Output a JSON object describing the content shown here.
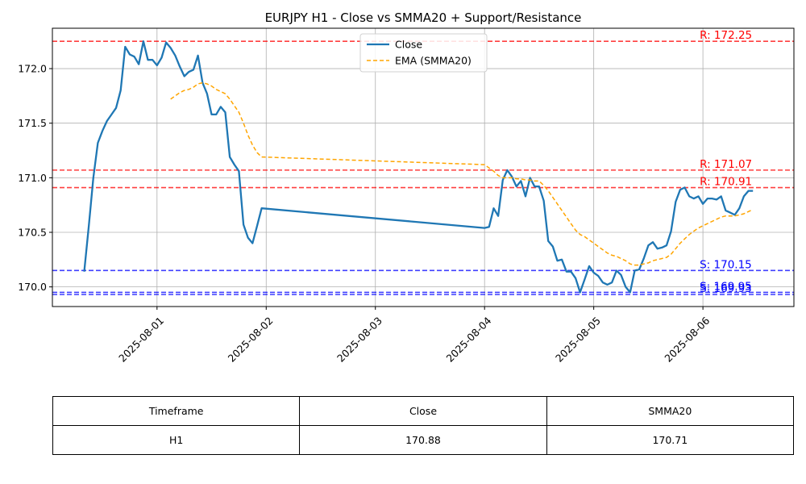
{
  "chart_data": {
    "type": "line",
    "title": "EURJPY H1 - Close vs SMMA20 + Support/Resistance",
    "x_tick_labels": [
      "2025-08-01",
      "2025-08-02",
      "2025-08-03",
      "2025-08-04",
      "2025-08-05",
      "2025-08-06"
    ],
    "xlim": [
      "2025-07-31T01:00",
      "2025-08-06T20:00"
    ],
    "y_tick_labels": [
      "170.0",
      "170.5",
      "171.0",
      "171.5",
      "172.0"
    ],
    "ylim": [
      169.82,
      172.37
    ],
    "grid": true,
    "legend_position": "top-center",
    "series": [
      {
        "name": "Close",
        "color": "#1f77b4",
        "style": "solid",
        "points": [
          [
            "2025-07-31T08:00",
            170.14
          ],
          [
            "2025-07-31T09:00",
            170.56
          ],
          [
            "2025-07-31T10:00",
            171.0
          ],
          [
            "2025-07-31T11:00",
            171.32
          ],
          [
            "2025-07-31T12:00",
            171.43
          ],
          [
            "2025-07-31T13:00",
            171.52
          ],
          [
            "2025-07-31T14:00",
            171.58
          ],
          [
            "2025-07-31T15:00",
            171.64
          ],
          [
            "2025-07-31T16:00",
            171.8
          ],
          [
            "2025-07-31T17:00",
            172.2
          ],
          [
            "2025-07-31T18:00",
            172.13
          ],
          [
            "2025-07-31T19:00",
            172.11
          ],
          [
            "2025-07-31T20:00",
            172.04
          ],
          [
            "2025-07-31T21:00",
            172.25
          ],
          [
            "2025-07-31T22:00",
            172.08
          ],
          [
            "2025-07-31T23:00",
            172.08
          ],
          [
            "2025-08-01T00:00",
            172.03
          ],
          [
            "2025-08-01T01:00",
            172.1
          ],
          [
            "2025-08-01T02:00",
            172.24
          ],
          [
            "2025-08-01T03:00",
            172.19
          ],
          [
            "2025-08-01T04:00",
            172.12
          ],
          [
            "2025-08-01T05:00",
            172.02
          ],
          [
            "2025-08-01T06:00",
            171.93
          ],
          [
            "2025-08-01T07:00",
            171.97
          ],
          [
            "2025-08-01T08:00",
            171.99
          ],
          [
            "2025-08-01T09:00",
            172.12
          ],
          [
            "2025-08-01T10:00",
            171.87
          ],
          [
            "2025-08-01T11:00",
            171.77
          ],
          [
            "2025-08-01T12:00",
            171.58
          ],
          [
            "2025-08-01T13:00",
            171.58
          ],
          [
            "2025-08-01T14:00",
            171.65
          ],
          [
            "2025-08-01T15:00",
            171.6
          ],
          [
            "2025-08-01T16:00",
            171.19
          ],
          [
            "2025-08-01T17:00",
            171.12
          ],
          [
            "2025-08-01T18:00",
            171.06
          ],
          [
            "2025-08-01T19:00",
            170.57
          ],
          [
            "2025-08-01T20:00",
            170.45
          ],
          [
            "2025-08-01T21:00",
            170.4
          ],
          [
            "2025-08-01T22:00",
            170.56
          ],
          [
            "2025-08-01T23:00",
            170.72
          ],
          [
            "2025-08-04T00:00",
            170.54
          ],
          [
            "2025-08-04T01:00",
            170.55
          ],
          [
            "2025-08-04T02:00",
            170.72
          ],
          [
            "2025-08-04T03:00",
            170.65
          ],
          [
            "2025-08-04T04:00",
            170.98
          ],
          [
            "2025-08-04T05:00",
            171.07
          ],
          [
            "2025-08-04T06:00",
            171.01
          ],
          [
            "2025-08-04T07:00",
            170.92
          ],
          [
            "2025-08-04T08:00",
            170.97
          ],
          [
            "2025-08-04T09:00",
            170.83
          ],
          [
            "2025-08-04T10:00",
            171.0
          ],
          [
            "2025-08-04T11:00",
            170.92
          ],
          [
            "2025-08-04T12:00",
            170.92
          ],
          [
            "2025-08-04T13:00",
            170.79
          ],
          [
            "2025-08-04T14:00",
            170.42
          ],
          [
            "2025-08-04T15:00",
            170.37
          ],
          [
            "2025-08-04T16:00",
            170.24
          ],
          [
            "2025-08-04T17:00",
            170.25
          ],
          [
            "2025-08-04T18:00",
            170.14
          ],
          [
            "2025-08-04T19:00",
            170.14
          ],
          [
            "2025-08-04T20:00",
            170.08
          ],
          [
            "2025-08-04T21:00",
            169.95
          ],
          [
            "2025-08-04T22:00",
            170.07
          ],
          [
            "2025-08-04T23:00",
            170.19
          ],
          [
            "2025-08-05T00:00",
            170.13
          ],
          [
            "2025-08-05T01:00",
            170.1
          ],
          [
            "2025-08-05T02:00",
            170.04
          ],
          [
            "2025-08-05T03:00",
            170.02
          ],
          [
            "2025-08-05T04:00",
            170.04
          ],
          [
            "2025-08-05T05:00",
            170.15
          ],
          [
            "2025-08-05T06:00",
            170.11
          ],
          [
            "2025-08-05T07:00",
            170.0
          ],
          [
            "2025-08-05T08:00",
            169.95
          ],
          [
            "2025-08-05T09:00",
            170.15
          ],
          [
            "2025-08-05T10:00",
            170.16
          ],
          [
            "2025-08-05T11:00",
            170.26
          ],
          [
            "2025-08-05T12:00",
            170.38
          ],
          [
            "2025-08-05T13:00",
            170.41
          ],
          [
            "2025-08-05T14:00",
            170.35
          ],
          [
            "2025-08-05T15:00",
            170.36
          ],
          [
            "2025-08-05T16:00",
            170.38
          ],
          [
            "2025-08-05T17:00",
            170.51
          ],
          [
            "2025-08-05T18:00",
            170.78
          ],
          [
            "2025-08-05T19:00",
            170.89
          ],
          [
            "2025-08-05T20:00",
            170.91
          ],
          [
            "2025-08-05T21:00",
            170.83
          ],
          [
            "2025-08-05T22:00",
            170.81
          ],
          [
            "2025-08-05T23:00",
            170.83
          ],
          [
            "2025-08-06T00:00",
            170.76
          ],
          [
            "2025-08-06T01:00",
            170.81
          ],
          [
            "2025-08-06T02:00",
            170.81
          ],
          [
            "2025-08-06T03:00",
            170.8
          ],
          [
            "2025-08-06T04:00",
            170.83
          ],
          [
            "2025-08-06T05:00",
            170.7
          ],
          [
            "2025-08-06T06:00",
            170.68
          ],
          [
            "2025-08-06T07:00",
            170.66
          ],
          [
            "2025-08-06T08:00",
            170.72
          ],
          [
            "2025-08-06T09:00",
            170.83
          ],
          [
            "2025-08-06T10:00",
            170.88
          ],
          [
            "2025-08-06T11:00",
            170.88
          ]
        ]
      },
      {
        "name": "EMA (SMMA20)",
        "color": "#ffa500",
        "style": "dashed",
        "points": [
          [
            "2025-08-01T03:00",
            171.72
          ],
          [
            "2025-08-01T04:00",
            171.75
          ],
          [
            "2025-08-01T05:00",
            171.78
          ],
          [
            "2025-08-01T06:00",
            171.8
          ],
          [
            "2025-08-01T07:00",
            171.81
          ],
          [
            "2025-08-01T08:00",
            171.83
          ],
          [
            "2025-08-01T09:00",
            171.86
          ],
          [
            "2025-08-01T10:00",
            171.87
          ],
          [
            "2025-08-01T11:00",
            171.86
          ],
          [
            "2025-08-01T12:00",
            171.84
          ],
          [
            "2025-08-01T13:00",
            171.81
          ],
          [
            "2025-08-01T14:00",
            171.79
          ],
          [
            "2025-08-01T15:00",
            171.77
          ],
          [
            "2025-08-01T16:00",
            171.72
          ],
          [
            "2025-08-01T17:00",
            171.66
          ],
          [
            "2025-08-01T18:00",
            171.6
          ],
          [
            "2025-08-01T19:00",
            171.5
          ],
          [
            "2025-08-01T20:00",
            171.39
          ],
          [
            "2025-08-01T21:00",
            171.3
          ],
          [
            "2025-08-01T22:00",
            171.23
          ],
          [
            "2025-08-01T23:00",
            171.19
          ],
          [
            "2025-08-04T00:00",
            171.12
          ],
          [
            "2025-08-04T01:00",
            171.09
          ],
          [
            "2025-08-04T02:00",
            171.06
          ],
          [
            "2025-08-04T03:00",
            171.02
          ],
          [
            "2025-08-04T04:00",
            171.0
          ],
          [
            "2025-08-04T05:00",
            171.0
          ],
          [
            "2025-08-04T06:00",
            171.0
          ],
          [
            "2025-08-04T07:00",
            170.99
          ],
          [
            "2025-08-04T08:00",
            170.99
          ],
          [
            "2025-08-04T09:00",
            170.98
          ],
          [
            "2025-08-04T10:00",
            170.98
          ],
          [
            "2025-08-04T11:00",
            170.97
          ],
          [
            "2025-08-04T12:00",
            170.97
          ],
          [
            "2025-08-04T13:00",
            170.93
          ],
          [
            "2025-08-04T14:00",
            170.88
          ],
          [
            "2025-08-04T15:00",
            170.82
          ],
          [
            "2025-08-04T16:00",
            170.76
          ],
          [
            "2025-08-04T17:00",
            170.7
          ],
          [
            "2025-08-04T18:00",
            170.64
          ],
          [
            "2025-08-04T19:00",
            170.58
          ],
          [
            "2025-08-04T20:00",
            170.52
          ],
          [
            "2025-08-04T21:00",
            170.48
          ],
          [
            "2025-08-04T22:00",
            170.46
          ],
          [
            "2025-08-04T23:00",
            170.43
          ],
          [
            "2025-08-05T00:00",
            170.4
          ],
          [
            "2025-08-05T01:00",
            170.37
          ],
          [
            "2025-08-05T02:00",
            170.34
          ],
          [
            "2025-08-05T03:00",
            170.31
          ],
          [
            "2025-08-05T04:00",
            170.29
          ],
          [
            "2025-08-05T05:00",
            170.28
          ],
          [
            "2025-08-05T06:00",
            170.26
          ],
          [
            "2025-08-05T07:00",
            170.24
          ],
          [
            "2025-08-05T08:00",
            170.21
          ],
          [
            "2025-08-05T09:00",
            170.2
          ],
          [
            "2025-08-05T10:00",
            170.2
          ],
          [
            "2025-08-05T11:00",
            170.21
          ],
          [
            "2025-08-05T12:00",
            170.22
          ],
          [
            "2025-08-05T13:00",
            170.24
          ],
          [
            "2025-08-05T14:00",
            170.25
          ],
          [
            "2025-08-05T15:00",
            170.26
          ],
          [
            "2025-08-05T16:00",
            170.27
          ],
          [
            "2025-08-05T17:00",
            170.3
          ],
          [
            "2025-08-05T18:00",
            170.35
          ],
          [
            "2025-08-05T19:00",
            170.4
          ],
          [
            "2025-08-05T20:00",
            170.44
          ],
          [
            "2025-08-05T21:00",
            170.48
          ],
          [
            "2025-08-05T22:00",
            170.51
          ],
          [
            "2025-08-05T23:00",
            170.54
          ],
          [
            "2025-08-06T00:00",
            170.56
          ],
          [
            "2025-08-06T01:00",
            170.58
          ],
          [
            "2025-08-06T02:00",
            170.6
          ],
          [
            "2025-08-06T03:00",
            170.62
          ],
          [
            "2025-08-06T04:00",
            170.64
          ],
          [
            "2025-08-06T05:00",
            170.65
          ],
          [
            "2025-08-06T06:00",
            170.65
          ],
          [
            "2025-08-06T07:00",
            170.65
          ],
          [
            "2025-08-06T08:00",
            170.66
          ],
          [
            "2025-08-06T09:00",
            170.67
          ],
          [
            "2025-08-06T10:00",
            170.69
          ],
          [
            "2025-08-06T11:00",
            170.71
          ]
        ]
      }
    ],
    "levels": [
      {
        "kind": "resistance",
        "value": 172.25,
        "label": "R: 172.25",
        "color": "#ff0000"
      },
      {
        "kind": "resistance",
        "value": 171.07,
        "label": "R: 171.07",
        "color": "#ff0000"
      },
      {
        "kind": "resistance",
        "value": 170.91,
        "label": "R: 170.91",
        "color": "#ff0000"
      },
      {
        "kind": "support",
        "value": 170.15,
        "label": "S: 170.15",
        "color": "#0000ff"
      },
      {
        "kind": "support",
        "value": 169.95,
        "label": "S: 169.95",
        "color": "#0000ff"
      },
      {
        "kind": "support",
        "value": 169.93,
        "label": "S: 169.93",
        "color": "#0000ff"
      }
    ]
  },
  "table": {
    "headers": [
      "Timeframe",
      "Close",
      "SMMA20"
    ],
    "row": [
      "H1",
      "170.88",
      "170.71"
    ]
  }
}
